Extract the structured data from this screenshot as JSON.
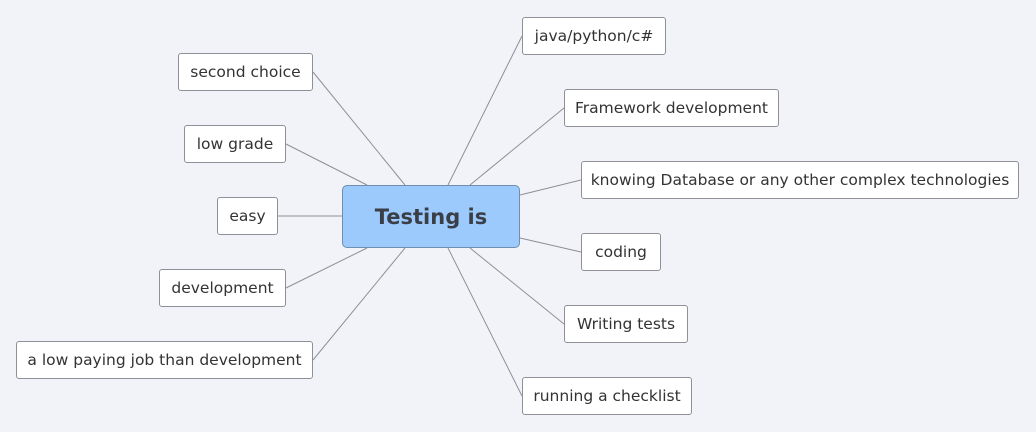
{
  "colors": {
    "background": "#f2f3f8",
    "central_fill": "#9ccafc",
    "central_border": "#6f8fb0",
    "node_fill": "#ffffff",
    "node_border": "#8f9095",
    "connector": "#8f9095"
  },
  "central_topic": "Testing is",
  "branches_right": [
    "java/python/c#",
    "Framework development",
    "knowing Database or any other complex technologies",
    "coding",
    "Writing tests",
    "running a checklist"
  ],
  "branches_left": [
    "second choice",
    "low grade",
    "easy",
    "development",
    "a low paying job than development"
  ]
}
